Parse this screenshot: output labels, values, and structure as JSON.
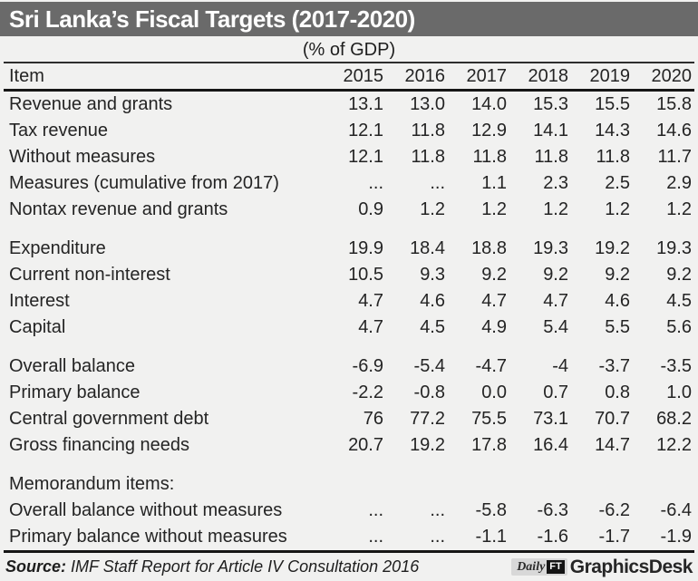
{
  "header": {
    "title": "Sri Lanka’s Fiscal Targets (2017-2020)",
    "subtitle": "(% of GDP)"
  },
  "chart_data": {
    "type": "table",
    "title": "Sri Lanka’s Fiscal Targets (2017-2020)",
    "unit": "(% of GDP)",
    "columns": [
      "Item",
      "2015",
      "2016",
      "2017",
      "2018",
      "2019",
      "2020"
    ],
    "sections": [
      {
        "rows": [
          [
            "Revenue and grants",
            "13.1",
            "13.0",
            "14.0",
            "15.3",
            "15.5",
            "15.8"
          ],
          [
            "Tax revenue",
            "12.1",
            "11.8",
            "12.9",
            "14.1",
            "14.3",
            "14.6"
          ],
          [
            "Without measures",
            "12.1",
            "11.8",
            "11.8",
            "11.8",
            "11.8",
            "11.7"
          ],
          [
            "Measures (cumulative from 2017)",
            "...",
            "...",
            "1.1",
            "2.3",
            "2.5",
            "2.9"
          ],
          [
            "Nontax revenue and grants",
            "0.9",
            "1.2",
            "1.2",
            "1.2",
            "1.2",
            "1.2"
          ]
        ]
      },
      {
        "rows": [
          [
            "Expenditure",
            "19.9",
            "18.4",
            "18.8",
            "19.3",
            "19.2",
            "19.3"
          ],
          [
            "Current non-interest",
            "10.5",
            "9.3",
            "9.2",
            "9.2",
            "9.2",
            "9.2"
          ],
          [
            "Interest",
            "4.7",
            "4.6",
            "4.7",
            "4.7",
            "4.6",
            "4.5"
          ],
          [
            "Capital",
            "4.7",
            "4.5",
            "4.9",
            "5.4",
            "5.5",
            "5.6"
          ]
        ]
      },
      {
        "rows": [
          [
            "Overall balance",
            "-6.9",
            "-5.4",
            "-4.7",
            "-4",
            "-3.7",
            "-3.5"
          ],
          [
            "Primary balance",
            "-2.2",
            "-0.8",
            "0.0",
            "0.7",
            "0.8",
            "1.0"
          ],
          [
            "Central government debt",
            "76",
            "77.2",
            "75.5",
            "73.1",
            "70.7",
            "68.2"
          ],
          [
            "Gross financing needs",
            "20.7",
            "19.2",
            "17.8",
            "16.4",
            "14.7",
            "12.2"
          ]
        ]
      },
      {
        "rows": [
          [
            "Memorandum items:",
            "",
            "",
            "",
            "",
            "",
            ""
          ],
          [
            "Overall balance without measures",
            "...",
            "...",
            "-5.8",
            "-6.3",
            "-6.2",
            "-6.4"
          ],
          [
            "Primary balance without measures",
            "...",
            "...",
            "-1.1",
            "-1.6",
            "-1.7",
            "-1.9"
          ]
        ]
      }
    ]
  },
  "footer": {
    "source_label": "Source:",
    "source_text": "IMF Staff Report for Article IV Consultation 2016",
    "logo": {
      "daily": "Daily",
      "ft": "FT",
      "brand": "GraphicsDesk"
    }
  },
  "colors": {
    "title_bar": "#6a6a6a",
    "title_text": "#ffffff",
    "background": "#f1f1f0",
    "text": "#242424",
    "rule": "#161616",
    "logo_box": "#d8d8d8",
    "logo_ft_box": "#141414"
  }
}
